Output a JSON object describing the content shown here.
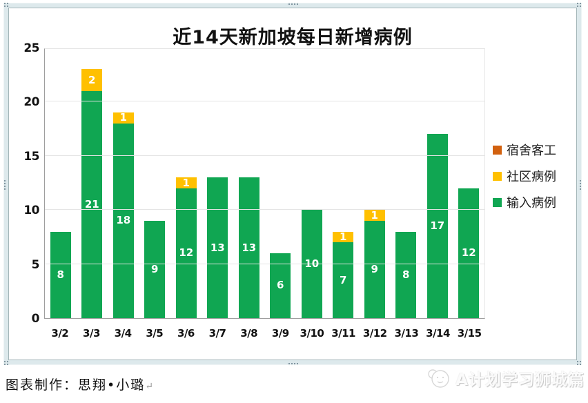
{
  "chart_data": {
    "type": "bar",
    "stacked": true,
    "title": "近14天新加坡每日新增病例",
    "categories": [
      "3/2",
      "3/3",
      "3/4",
      "3/5",
      "3/6",
      "3/7",
      "3/8",
      "3/9",
      "3/10",
      "3/11",
      "3/12",
      "3/13",
      "3/14",
      "3/15"
    ],
    "series": [
      {
        "name": "宿舍客工",
        "color": "#d2610f",
        "values": [
          0,
          0,
          0,
          0,
          0,
          0,
          0,
          0,
          0,
          0,
          0,
          0,
          0,
          0
        ]
      },
      {
        "name": "社区病例",
        "color": "#ffc000",
        "values": [
          0,
          2,
          1,
          0,
          1,
          0,
          0,
          0,
          0,
          1,
          1,
          0,
          0,
          0
        ]
      },
      {
        "name": "输入病例",
        "color": "#10a652",
        "values": [
          8,
          21,
          18,
          9,
          12,
          13,
          13,
          6,
          10,
          7,
          9,
          8,
          17,
          12
        ]
      }
    ],
    "ylim": [
      0,
      25
    ],
    "yticks": [
      0,
      5,
      10,
      15,
      20,
      25
    ],
    "grid": true,
    "legend_position": "right",
    "bar_label_color": "#ffffff"
  },
  "footer": {
    "credit": "图表制作：思翔•小璐",
    "return_mark": "↵"
  },
  "watermark": {
    "text": "A计划学习狮城篇"
  }
}
